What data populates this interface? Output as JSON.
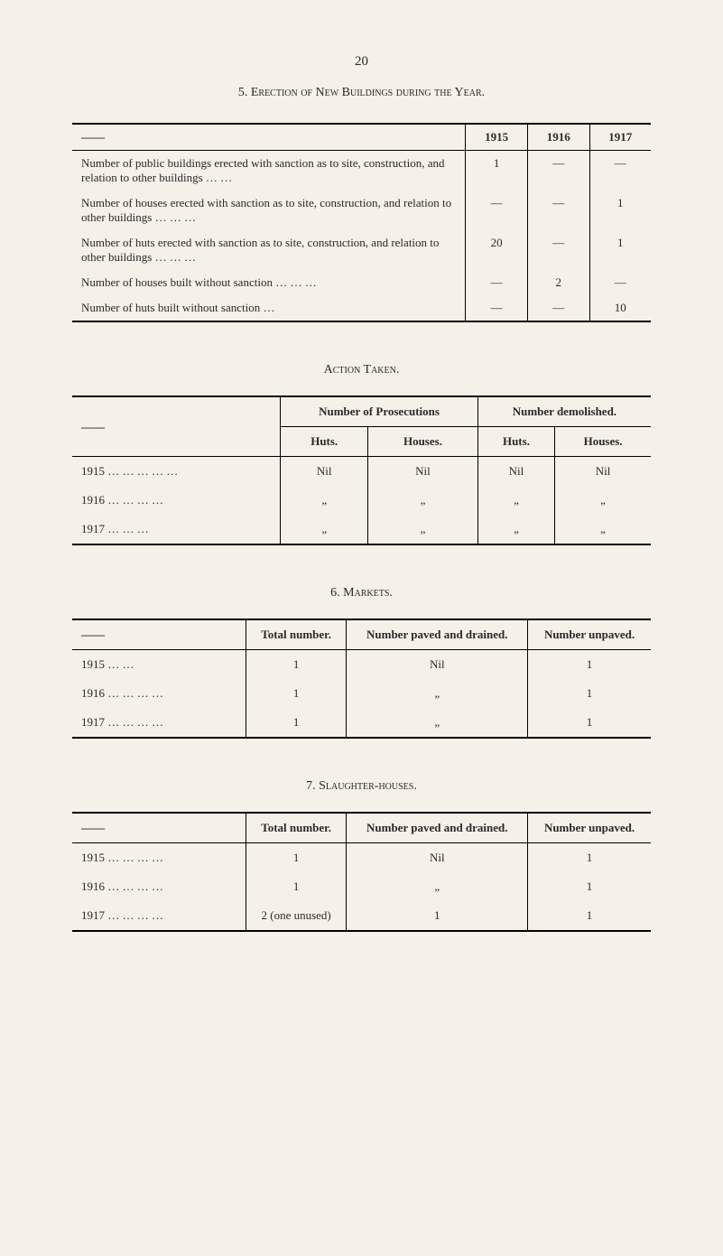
{
  "page_number": "20",
  "section5": {
    "title": "5. Erection of New Buildings during the Year.",
    "years": [
      "1915",
      "1916",
      "1917"
    ],
    "rows": [
      {
        "desc": "Number of public buildings erected with sanction as to site, construction, and relation to other buildings … …",
        "v": [
          "1",
          "—",
          "—"
        ]
      },
      {
        "desc": "Number of houses erected with sanction as to site, construction, and relation to other buildings … … …",
        "v": [
          "—",
          "—",
          "1"
        ]
      },
      {
        "desc": "Number of huts erected with sanction as to site, construction, and relation to other buildings … … …",
        "v": [
          "20",
          "—",
          "1"
        ]
      },
      {
        "desc": "Number of houses built without sanction … … …",
        "v": [
          "—",
          "2",
          "—"
        ]
      },
      {
        "desc": "Number of huts built without sanction …",
        "v": [
          "—",
          "—",
          "10"
        ]
      }
    ]
  },
  "action_taken": {
    "title": "Action Taken.",
    "group_headers": [
      "Number of Prosecutions",
      "Number demolished."
    ],
    "sub_headers": [
      "Huts.",
      "Houses.",
      "Huts.",
      "Houses."
    ],
    "rows": [
      {
        "year": "1915 … … … … …",
        "v": [
          "Nil",
          "Nil",
          "Nil",
          "Nil"
        ]
      },
      {
        "year": "1916 … … … …",
        "v": [
          "„",
          "„",
          "„",
          "„"
        ]
      },
      {
        "year": "1917 … … …",
        "v": [
          "„",
          "„",
          "„",
          "„"
        ]
      }
    ]
  },
  "section6": {
    "title": "6. Markets.",
    "headers": [
      "Total number.",
      "Number paved and drained.",
      "Number unpaved."
    ],
    "rows": [
      {
        "year": "1915 …  …",
        "v": [
          "1",
          "Nil",
          "1"
        ]
      },
      {
        "year": "1916 … … … …",
        "v": [
          "1",
          "„",
          "1"
        ]
      },
      {
        "year": "1917 … … … …",
        "v": [
          "1",
          "„",
          "1"
        ]
      }
    ]
  },
  "section7": {
    "title": "7. Slaughter-houses.",
    "headers": [
      "Total number.",
      "Number paved and drained.",
      "Number unpaved."
    ],
    "rows": [
      {
        "year": "1915 … … … …",
        "v": [
          "1",
          "Nil",
          "1"
        ]
      },
      {
        "year": "1916 … … … …",
        "v": [
          "1",
          "„",
          "1"
        ]
      },
      {
        "year": "1917 … … … …",
        "v": [
          "2 (one unused)",
          "1",
          "1"
        ]
      }
    ]
  }
}
